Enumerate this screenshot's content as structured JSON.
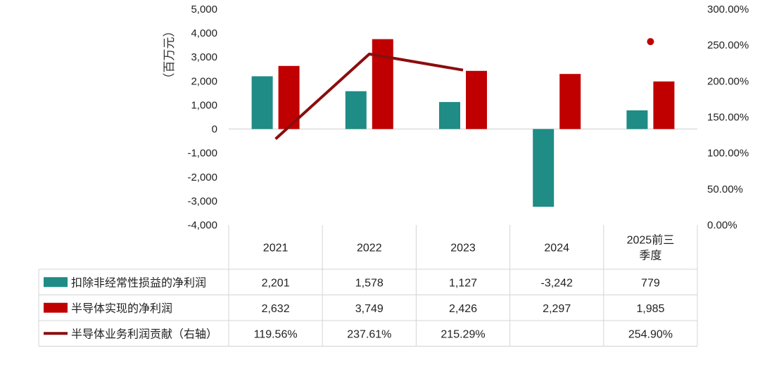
{
  "chart_data": {
    "type": "bar",
    "ylabel": "（百万元）",
    "ylim": [
      -4000,
      5000
    ],
    "y_ticks": [
      5000,
      4000,
      3000,
      2000,
      1000,
      0,
      -1000,
      -2000,
      -3000,
      -4000
    ],
    "y_tick_labels": [
      "5,000",
      "4,000",
      "3,000",
      "2,000",
      "1,000",
      "0",
      "-1,000",
      "-2,000",
      "-3,000",
      "-4,000"
    ],
    "y2lim": [
      0,
      300
    ],
    "y2_ticks": [
      300,
      250,
      200,
      150,
      100,
      50,
      0
    ],
    "y2_tick_labels": [
      "300.00%",
      "250.00%",
      "200.00%",
      "150.00%",
      "100.00%",
      "50.00%",
      "0.00%"
    ],
    "categories": [
      "2021",
      "2022",
      "2023",
      "2024",
      "2025前三季度"
    ],
    "category_lines": [
      [
        "2021"
      ],
      [
        "2022"
      ],
      [
        "2023"
      ],
      [
        "2024"
      ],
      [
        "2025前三",
        "季度"
      ]
    ],
    "series": [
      {
        "name": "扣除非经常性损益的净利润",
        "kind": "bar",
        "axis": "left",
        "color": "#1f8c85",
        "values": [
          2201,
          1578,
          1127,
          -3242,
          779
        ],
        "labels": [
          "2,201",
          "1,578",
          "1,127",
          "-3,242",
          "779"
        ]
      },
      {
        "name": "半导体实现的净利润",
        "kind": "bar",
        "axis": "left",
        "color": "#c00000",
        "values": [
          2632,
          3749,
          2426,
          2297,
          1985
        ],
        "labels": [
          "2,632",
          "3,749",
          "2,426",
          "2,297",
          "1,985"
        ]
      },
      {
        "name": "半导体业务利润贡献（右轴）",
        "kind": "line",
        "axis": "right",
        "color": "#8b0d0d",
        "values": [
          119.56,
          237.61,
          215.29,
          null,
          254.9
        ],
        "labels": [
          "119.56%",
          "237.61%",
          "215.29%",
          "",
          "254.90%"
        ]
      }
    ]
  }
}
